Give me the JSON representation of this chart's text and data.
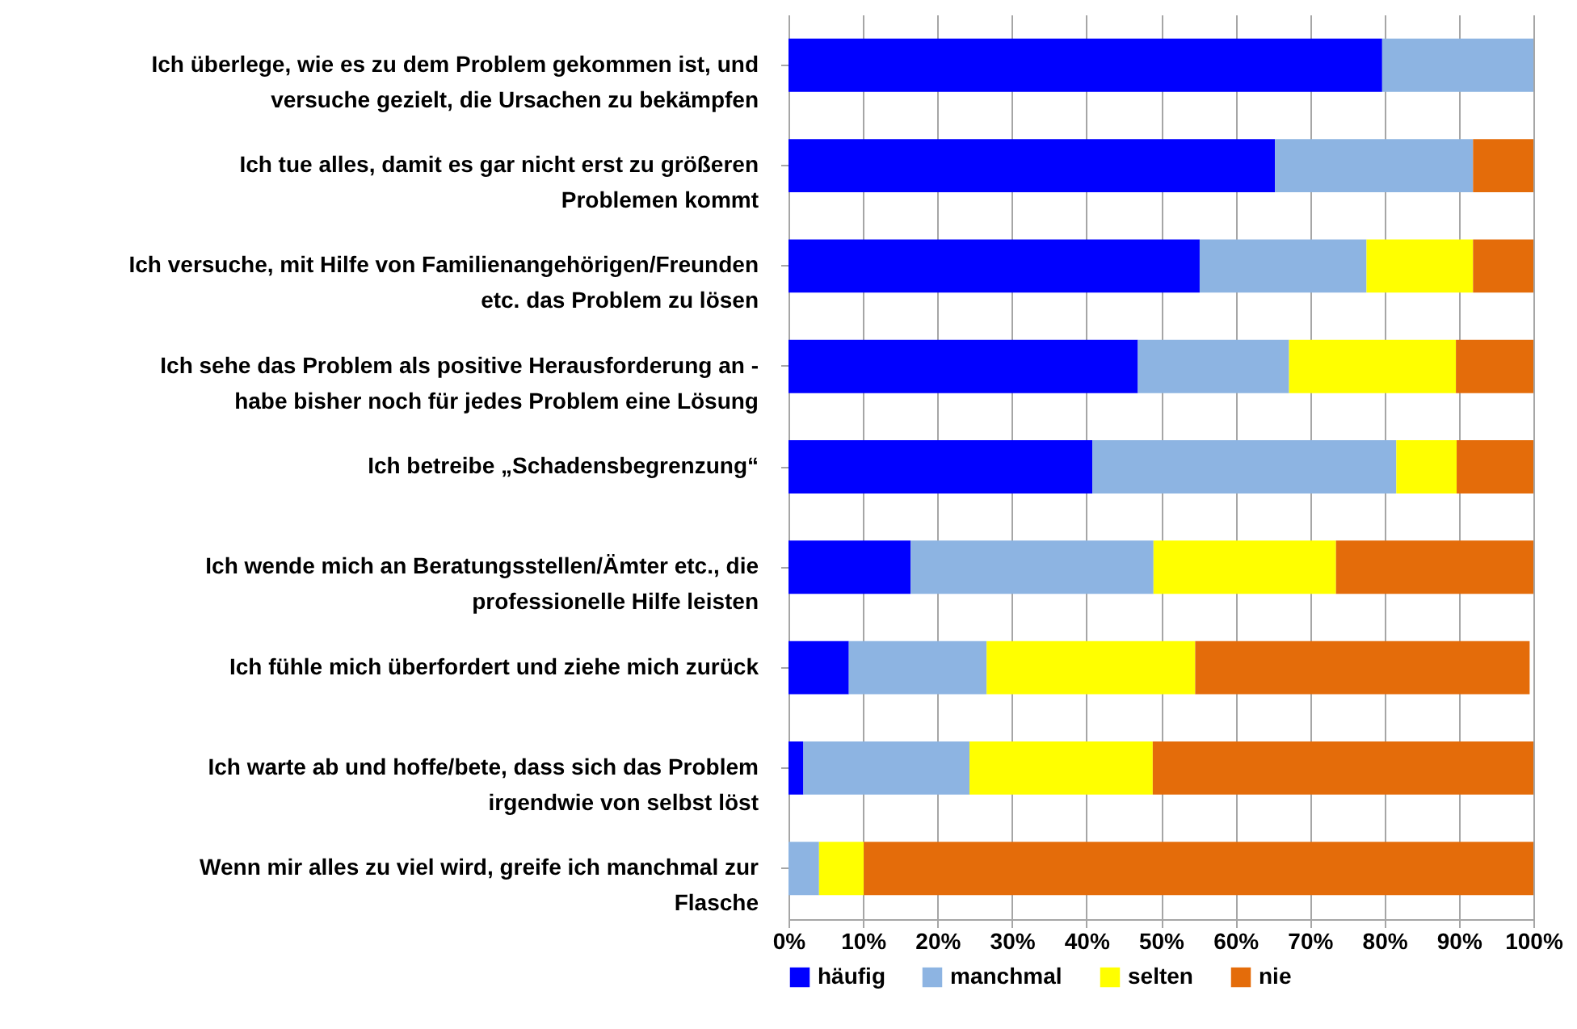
{
  "chart_data": {
    "type": "bar",
    "orientation": "horizontal",
    "stacked": true,
    "categories": [
      "Ich überlege, wie es zu dem Problem gekommen ist, und versuche gezielt, die Ursachen zu bekämpfen",
      "Ich tue alles, damit es gar nicht erst zu größeren Problemen kommt",
      "Ich versuche, mit Hilfe von Familienangehörigen/Freunden etc. das Problem zu lösen",
      "Ich sehe das Problem als positive Herausforderung an - habe bisher noch für jedes Problem eine Lösung",
      "Ich betreibe „Schadensbegrenzung“",
      "Ich wende mich an Beratungsstellen/Ämter etc., die professionelle Hilfe leisten",
      "Ich fühle mich überfordert und ziehe mich zurück",
      "Ich warte ab und hoffe/bete, dass sich das Problem irgendwie von selbst löst",
      "Wenn mir alles zu viel wird, greife ich manchmal zur Flasche"
    ],
    "series": [
      {
        "name": "häufig",
        "color": "#0000ff",
        "values": [
          79.7,
          65.3,
          55.2,
          46.9,
          40.8,
          16.4,
          8.1,
          2.0,
          0
        ]
      },
      {
        "name": "manchmal",
        "color": "#8db4e2",
        "values": [
          20.3,
          26.6,
          22.4,
          20.3,
          40.8,
          32.6,
          18.5,
          22.3,
          4.1
        ]
      },
      {
        "name": "selten",
        "color": "#ffff00",
        "values": [
          0,
          0,
          14.3,
          22.4,
          8.1,
          24.5,
          28.0,
          24.6,
          6.0
        ]
      },
      {
        "name": "nie",
        "color": "#e46c0a",
        "values": [
          0,
          8.1,
          8.1,
          10.4,
          10.3,
          26.5,
          44.9,
          51.1,
          89.9
        ]
      }
    ],
    "xlim": [
      0,
      100
    ],
    "xticks": [
      {
        "value": 0,
        "label": "0%"
      },
      {
        "value": 10,
        "label": "10%"
      },
      {
        "value": 20,
        "label": "20%"
      },
      {
        "value": 30,
        "label": "30%"
      },
      {
        "value": 40,
        "label": "40%"
      },
      {
        "value": 50,
        "label": "50%"
      },
      {
        "value": 60,
        "label": "60%"
      },
      {
        "value": 70,
        "label": "70%"
      },
      {
        "value": 80,
        "label": "80%"
      },
      {
        "value": 90,
        "label": "90%"
      },
      {
        "value": 100,
        "label": "100%"
      }
    ],
    "grid": "x",
    "legend": "bottom"
  }
}
